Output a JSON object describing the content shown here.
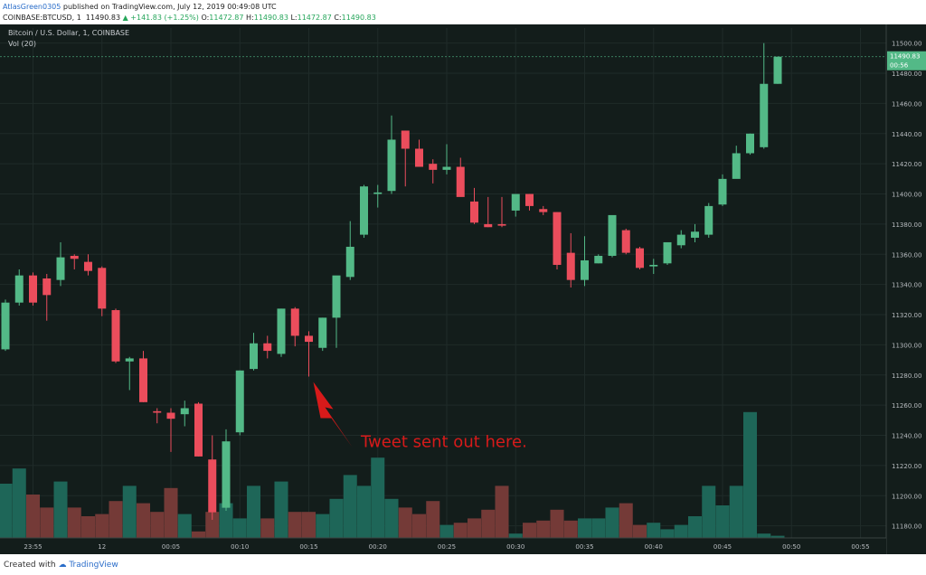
{
  "header": {
    "author": "AtlasGreen0305",
    "published": "published on TradingView.com, July 12, 2019 00:49:08 UTC",
    "symbol": "COINBASE:BTCUSD, 1",
    "price": "11490.83",
    "change": "▲ +141.83 (+1.25%)",
    "o_label": "O:",
    "o_value": "11472.87",
    "h_label": "H:",
    "h_value": "11490.83",
    "l_label": "L:",
    "l_value": "11472.87",
    "c_label": "C:",
    "c_value": "11490.83"
  },
  "legend": {
    "title": "Bitcoin / U.S. Dollar, 1, COINBASE",
    "volume": "Vol (20)"
  },
  "price_tag": {
    "price": "11490.83",
    "countdown": "00:56"
  },
  "annotation": "Tweet sent out here.",
  "footer": {
    "created_with": "Created with",
    "brand": "TradingView"
  },
  "colors": {
    "background": "#131d1b",
    "up": "#53b987",
    "down": "#eb4d5c",
    "vol_up": "#1e6658",
    "vol_down": "#743a37",
    "annotation": "#d71a1a"
  },
  "chart_data": {
    "type": "candlestick",
    "x_labels": [
      "23:55",
      "12",
      "00:05",
      "00:10",
      "00:15",
      "00:20",
      "00:25",
      "00:30",
      "00:35",
      "00:40",
      "00:45",
      "00:50",
      "00:55"
    ],
    "y_ticks": [
      11180,
      11200,
      11220,
      11240,
      11260,
      11280,
      11300,
      11320,
      11340,
      11360,
      11380,
      11400,
      11420,
      11440,
      11460,
      11480,
      11500
    ],
    "ylim": [
      11172,
      11510
    ],
    "candles": [
      {
        "o": 11297,
        "h": 11330,
        "l": 11296,
        "c": 11328,
        "v": 25
      },
      {
        "o": 11328,
        "h": 11350,
        "l": 11326,
        "c": 11346,
        "v": 32
      },
      {
        "o": 11346,
        "h": 11348,
        "l": 11326,
        "c": 11328,
        "v": 20
      },
      {
        "o": 11344,
        "h": 11347,
        "l": 11316,
        "c": 11333,
        "v": 14
      },
      {
        "o": 11343,
        "h": 11368,
        "l": 11339,
        "c": 11358,
        "v": 26
      },
      {
        "o": 11359,
        "h": 11360,
        "l": 11350,
        "c": 11357,
        "v": 14
      },
      {
        "o": 11355,
        "h": 11360,
        "l": 11346,
        "c": 11349,
        "v": 10
      },
      {
        "o": 11351,
        "h": 11352,
        "l": 11319,
        "c": 11324,
        "v": 11
      },
      {
        "o": 11323,
        "h": 11324,
        "l": 11288,
        "c": 11289,
        "v": 17
      },
      {
        "o": 11289,
        "h": 11292,
        "l": 11270,
        "c": 11291,
        "v": 24
      },
      {
        "o": 11291,
        "h": 11296,
        "l": 11262,
        "c": 11262,
        "v": 16
      },
      {
        "o": 11256,
        "h": 11258,
        "l": 11248,
        "c": 11255,
        "v": 12
      },
      {
        "o": 11255,
        "h": 11258,
        "l": 11229,
        "c": 11251,
        "v": 23
      },
      {
        "o": 11254,
        "h": 11263,
        "l": 11246,
        "c": 11258,
        "v": 11
      },
      {
        "o": 11261,
        "h": 11262,
        "l": 11226,
        "c": 11226,
        "v": 3
      },
      {
        "o": 11224,
        "h": 11240,
        "l": 11184,
        "c": 11189,
        "v": 12
      },
      {
        "o": 11192,
        "h": 11244,
        "l": 11190,
        "c": 11236,
        "v": 16
      },
      {
        "o": 11242,
        "h": 11283,
        "l": 11240,
        "c": 11283,
        "v": 9
      },
      {
        "o": 11284,
        "h": 11308,
        "l": 11283,
        "c": 11301,
        "v": 24
      },
      {
        "o": 11301,
        "h": 11306,
        "l": 11291,
        "c": 11296,
        "v": 9
      },
      {
        "o": 11294,
        "h": 11324,
        "l": 11292,
        "c": 11324,
        "v": 26
      },
      {
        "o": 11324,
        "h": 11325,
        "l": 11299,
        "c": 11306,
        "v": 12
      },
      {
        "o": 11306,
        "h": 11309,
        "l": 11279,
        "c": 11302,
        "v": 12
      },
      {
        "o": 11298,
        "h": 11318,
        "l": 11296,
        "c": 11318,
        "v": 11
      },
      {
        "o": 11318,
        "h": 11344,
        "l": 11298,
        "c": 11346,
        "v": 18
      },
      {
        "o": 11345,
        "h": 11382,
        "l": 11343,
        "c": 11365,
        "v": 29
      },
      {
        "o": 11373,
        "h": 11406,
        "l": 11371,
        "c": 11405,
        "v": 24
      },
      {
        "o": 11400,
        "h": 11406,
        "l": 11391,
        "c": 11401,
        "v": 37
      },
      {
        "o": 11402,
        "h": 11452,
        "l": 11400,
        "c": 11436,
        "v": 18
      },
      {
        "o": 11442,
        "h": 11442,
        "l": 11405,
        "c": 11430,
        "v": 14
      },
      {
        "o": 11430,
        "h": 11436,
        "l": 11418,
        "c": 11418,
        "v": 11
      },
      {
        "o": 11420,
        "h": 11423,
        "l": 11407,
        "c": 11416,
        "v": 17
      },
      {
        "o": 11416,
        "h": 11433,
        "l": 11413,
        "c": 11418,
        "v": 6
      },
      {
        "o": 11418,
        "h": 11424,
        "l": 11400,
        "c": 11398,
        "v": 7
      },
      {
        "o": 11395,
        "h": 11404,
        "l": 11380,
        "c": 11381,
        "v": 9
      },
      {
        "o": 11380,
        "h": 11398,
        "l": 11378,
        "c": 11378,
        "v": 13
      },
      {
        "o": 11380,
        "h": 11398,
        "l": 11378,
        "c": 11379,
        "v": 24
      },
      {
        "o": 11389,
        "h": 11400,
        "l": 11385,
        "c": 11400,
        "v": 2
      },
      {
        "o": 11400,
        "h": 11400,
        "l": 11389,
        "c": 11392,
        "v": 7
      },
      {
        "o": 11390,
        "h": 11392,
        "l": 11386,
        "c": 11388,
        "v": 8
      },
      {
        "o": 11388,
        "h": 11388,
        "l": 11350,
        "c": 11353,
        "v": 13
      },
      {
        "o": 11361,
        "h": 11374,
        "l": 11338,
        "c": 11343,
        "v": 8
      },
      {
        "o": 11343,
        "h": 11372,
        "l": 11339,
        "c": 11356,
        "v": 9
      },
      {
        "o": 11354,
        "h": 11360,
        "l": 11354,
        "c": 11359,
        "v": 9
      },
      {
        "o": 11359,
        "h": 11385,
        "l": 11358,
        "c": 11386,
        "v": 14
      },
      {
        "o": 11376,
        "h": 11377,
        "l": 11360,
        "c": 11361,
        "v": 16
      },
      {
        "o": 11364,
        "h": 11365,
        "l": 11350,
        "c": 11351,
        "v": 6
      },
      {
        "o": 11352,
        "h": 11357,
        "l": 11347,
        "c": 11353,
        "v": 7
      },
      {
        "o": 11354,
        "h": 11367,
        "l": 11353,
        "c": 11368,
        "v": 4
      },
      {
        "o": 11366,
        "h": 11376,
        "l": 11364,
        "c": 11373,
        "v": 6
      },
      {
        "o": 11371,
        "h": 11380,
        "l": 11368,
        "c": 11375,
        "v": 10
      },
      {
        "o": 11373,
        "h": 11394,
        "l": 11371,
        "c": 11392,
        "v": 24
      },
      {
        "o": 11393,
        "h": 11413,
        "l": 11392,
        "c": 11410,
        "v": 15
      },
      {
        "o": 11410,
        "h": 11432,
        "l": 11411,
        "c": 11427,
        "v": 24
      },
      {
        "o": 11427,
        "h": 11440,
        "l": 11426,
        "c": 11440,
        "v": 58
      },
      {
        "o": 11431,
        "h": 11500,
        "l": 11430,
        "c": 11473,
        "v": 2
      },
      {
        "o": 11473,
        "h": 11491,
        "l": 11473,
        "c": 11491,
        "v": 1
      }
    ],
    "annotation": {
      "text": "Tweet sent out here.",
      "candle_index": 22
    }
  }
}
